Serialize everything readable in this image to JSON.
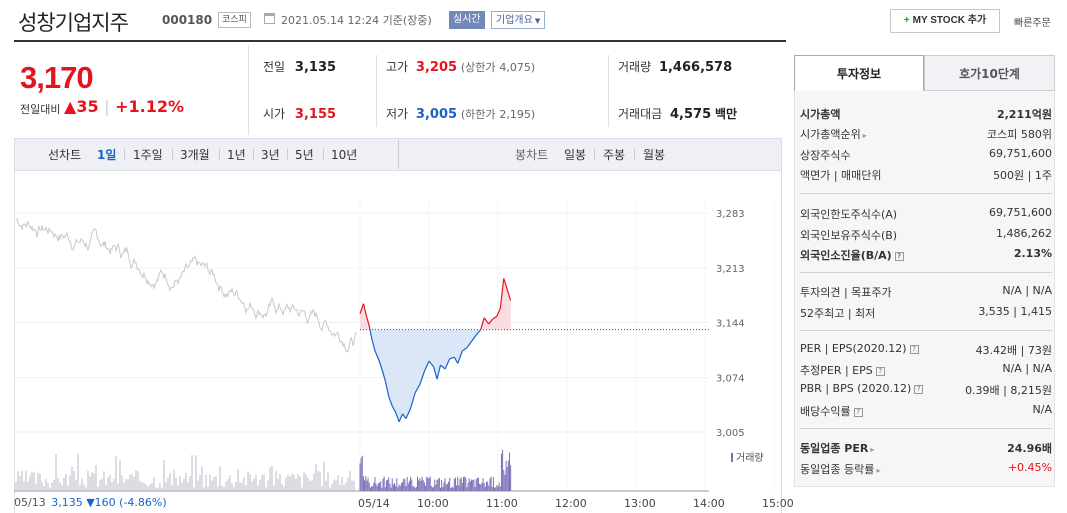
{
  "header": {
    "title": "성창기업지주",
    "code": "000180",
    "market": "코스피",
    "datetime": "2021.05.14 12:24 기준(장중)",
    "realtime": "실시간",
    "corp_info": "기업개요",
    "mystock": "MY STOCK 추가",
    "quick_order": "빠른주문"
  },
  "price": {
    "current": "3,170",
    "change_label": "전일대비",
    "change_arrow": "▲",
    "change": "35",
    "change_pct": "+1.12%"
  },
  "quote": {
    "prev_label": "전일",
    "prev": "3,135",
    "high_label": "고가",
    "high": "3,205",
    "upper_label": "(상한가",
    "upper": "4,075)",
    "volume_label": "거래량",
    "volume": "1,466,578",
    "open_label": "시가",
    "open": "3,155",
    "low_label": "저가",
    "low": "3,005",
    "lower_label": "(하한가",
    "lower": "2,195)",
    "amount_label": "거래대금",
    "amount": "4,575",
    "amount_unit": "백만"
  },
  "toolbar": {
    "line_label": "선차트",
    "periods": [
      "1일",
      "1주일",
      "3개월",
      "1년",
      "3년",
      "5년",
      "10년"
    ],
    "candle_label": "봉차트",
    "candles": [
      "일봉",
      "주봉",
      "월봉"
    ]
  },
  "chart_data": {
    "type": "line",
    "y_ticks": [
      "3,283",
      "3,213",
      "3,144",
      "3,074",
      "3,005"
    ],
    "x_ticks": [
      "05/14",
      "10:00",
      "11:00",
      "12:00",
      "13:00",
      "14:00",
      "15:00"
    ],
    "prev_close": 3135,
    "ylim": [
      3005,
      3283
    ],
    "volume_label": "거래량",
    "prev_day_label": "05/13",
    "prev_day_close": "3,135",
    "prev_day_change": "▼160",
    "prev_day_pct": "(-4.86%)",
    "colors": {
      "up": "#e4141e",
      "down": "#1b62c8",
      "up_fill": "#f9dde0",
      "down_fill": "#dbe6f7",
      "prev": "#c8c8c8"
    }
  },
  "tabs": {
    "invest": "투자정보",
    "orderbook": "호가10단계"
  },
  "info": {
    "rows": [
      {
        "k": "시가총액",
        "v": "2,211억원",
        "bold": true
      },
      {
        "k": "시가총액순위",
        "v": "코스피 580위",
        "arrow": true
      },
      {
        "k": "상장주식수",
        "v": "69,751,600"
      },
      {
        "k": "액면가 | 매매단위",
        "v": "500원 | 1주"
      },
      {
        "k": "외국인한도주식수(A)",
        "v": "69,751,600"
      },
      {
        "k": "외국인보유주식수(B)",
        "v": "1,486,262"
      },
      {
        "k": "외국인소진율(B/A)",
        "v": "2.13%",
        "bold": true,
        "q": true
      },
      {
        "k": "투자의견 | 목표주가",
        "v": "N/A | N/A"
      },
      {
        "k": "52주최고 | 최저",
        "v": "3,535 | 1,415"
      },
      {
        "k": "PER | EPS(2020.12)",
        "v": "43.42배 | 73원",
        "q": true
      },
      {
        "k": "추정PER | EPS",
        "v": "N/A | N/A",
        "q": true
      },
      {
        "k": "PBR | BPS (2020.12)",
        "v": "0.39배 | 8,215원",
        "q": true
      },
      {
        "k": "배당수익률",
        "v": "N/A",
        "q": true
      },
      {
        "k": "동일업종 PER",
        "v": "24.96배",
        "bold": true,
        "arrow": true
      },
      {
        "k": "동일업종 등락률",
        "v": "+0.45%",
        "arrow": true,
        "red": true
      }
    ]
  }
}
